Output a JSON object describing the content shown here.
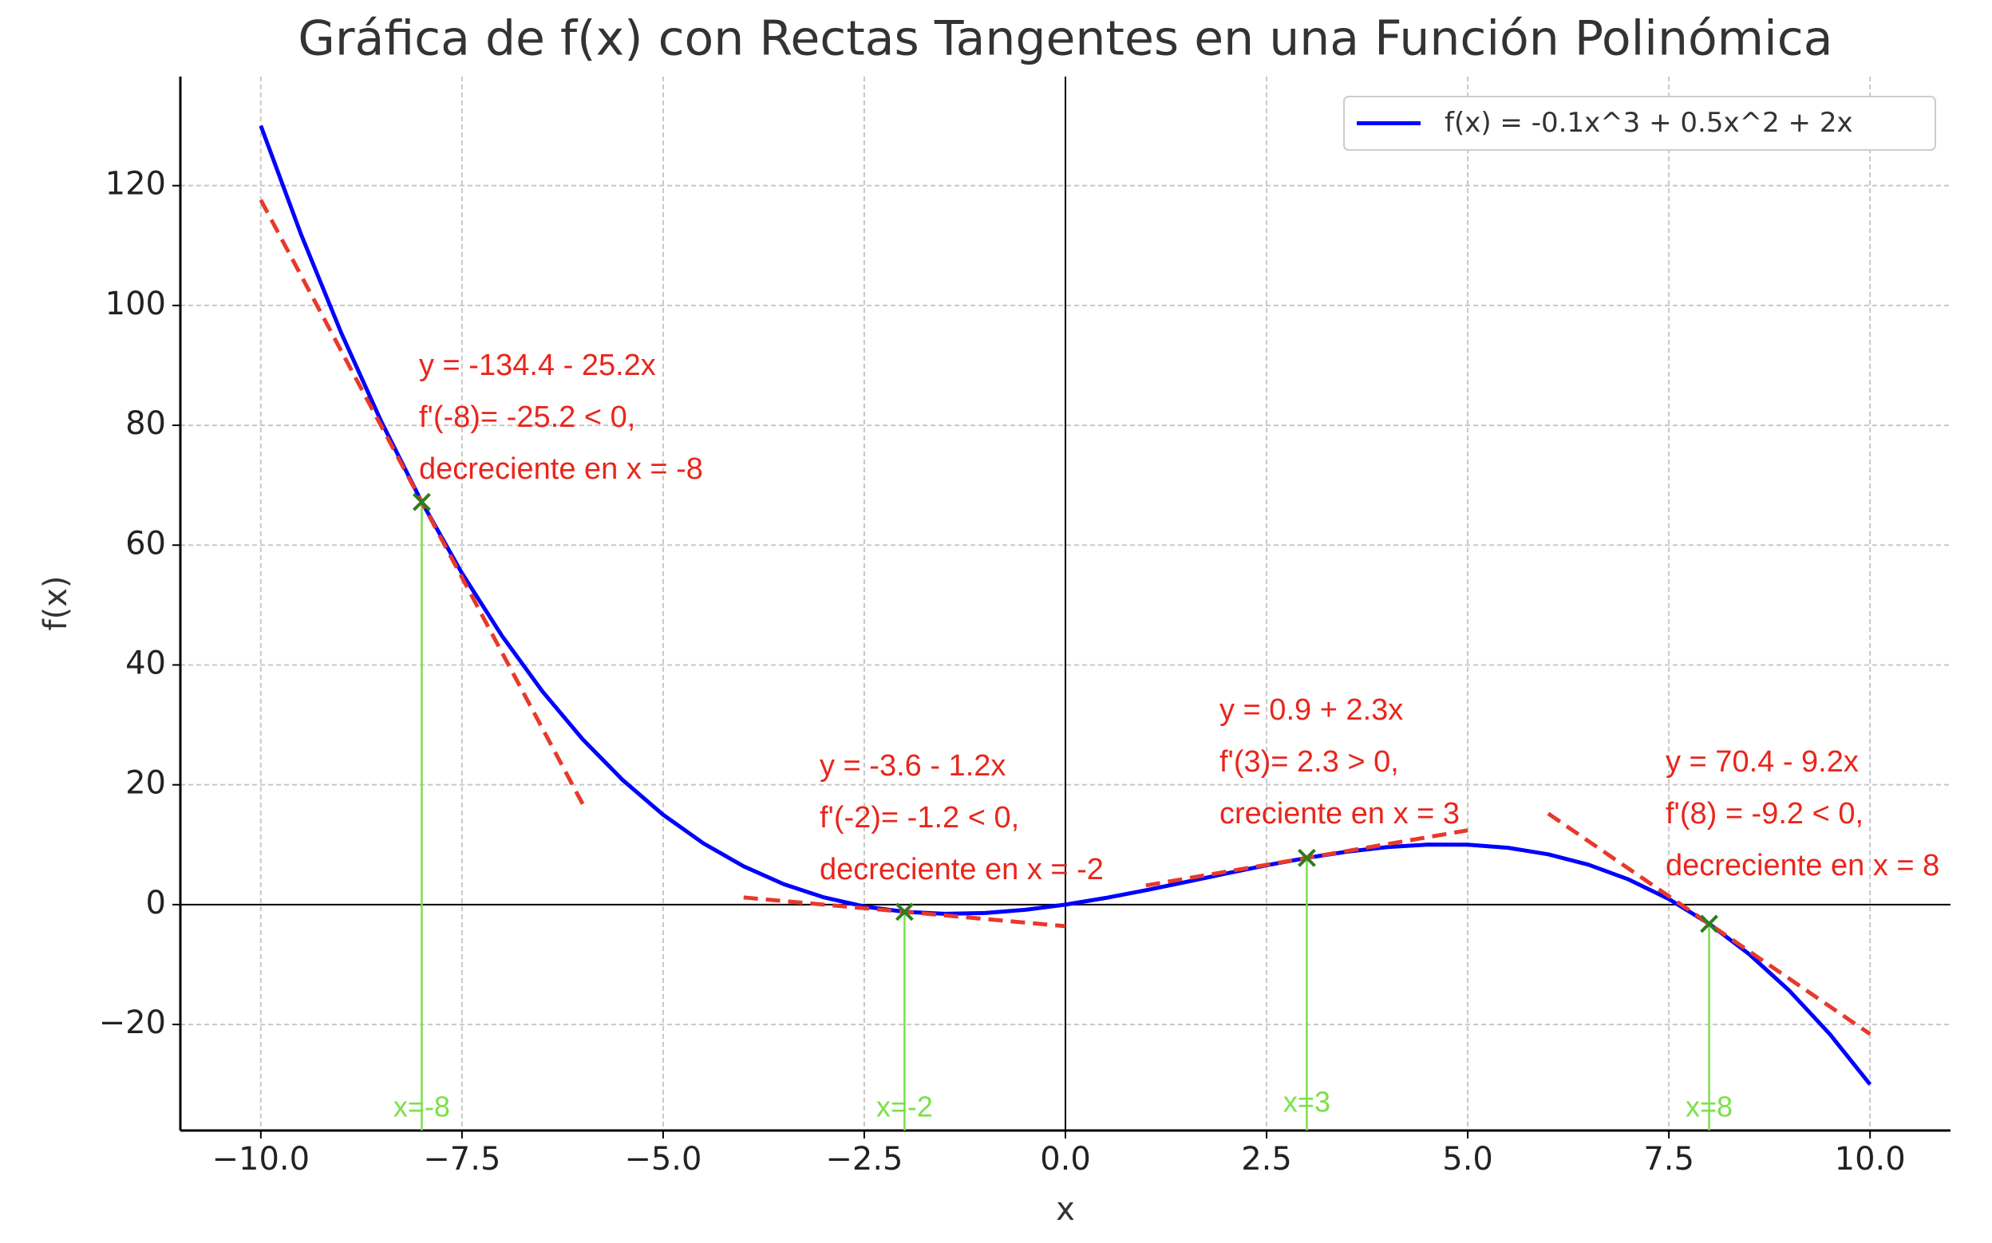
{
  "chart_data": {
    "type": "line",
    "title": "Gráfica de f(x) con Rectas Tangentes en una Función Polinómica",
    "xlabel": "x",
    "ylabel": "f(x)",
    "xlim": [
      -11,
      11
    ],
    "ylim": [
      -37.7,
      138.2
    ],
    "xticks": [
      {
        "value": -10,
        "label": "−10.0"
      },
      {
        "value": -7.5,
        "label": "−7.5"
      },
      {
        "value": -5,
        "label": "−5.0"
      },
      {
        "value": -2.5,
        "label": "−2.5"
      },
      {
        "value": 0,
        "label": "0.0"
      },
      2.5,
      {
        "value": 5,
        "label": "5.0"
      },
      7.5,
      {
        "value": 10,
        "label": "10.0"
      }
    ],
    "yticks": [
      {
        "value": -20,
        "label": "−20"
      },
      0,
      20,
      40,
      60,
      80,
      100,
      120
    ],
    "grid": true,
    "legend": "upper right",
    "series": [
      {
        "name": "f(x) = -0.1x^3 + 0.5x^2 + 2x",
        "color": "#0000ff",
        "x": [
          -10,
          -9.5,
          -9,
          -8.5,
          -8,
          -7.5,
          -7,
          -6.5,
          -6,
          -5.5,
          -5,
          -4.5,
          -4,
          -3.5,
          -3,
          -2.5,
          -2,
          -1.5,
          -1,
          -0.5,
          0,
          0.5,
          1,
          1.5,
          2,
          2.5,
          3,
          3.5,
          4,
          4.5,
          5,
          5.5,
          6,
          6.5,
          7,
          7.5,
          8,
          8.5,
          9,
          9.5,
          10
        ],
        "values": [
          130,
          111.8625,
          95.4,
          80.5375,
          67.2,
          55.3125,
          44.8,
          35.5875,
          27.6,
          20.7625,
          15,
          10.2375,
          6.4,
          3.4125,
          1.2,
          -0.3125,
          -1.2,
          -1.5375,
          -1.4,
          -0.8625,
          0,
          1.1125,
          2.4,
          3.7875,
          5.2,
          6.5625,
          7.8,
          8.8375,
          9.6,
          10.0125,
          10,
          9.4875,
          8.4,
          6.6625,
          4.2,
          0.9375,
          -3.2,
          -8.2875,
          -14.4,
          -21.6125,
          -30
        ]
      }
    ],
    "tangents": [
      {
        "color": "#e8392b",
        "x": [
          -10,
          -6
        ],
        "values": [
          117.6,
          16.8
        ]
      },
      {
        "color": "#e8392b",
        "x": [
          -4,
          0
        ],
        "values": [
          1.2,
          -3.6
        ]
      },
      {
        "color": "#e8392b",
        "x": [
          1,
          5
        ],
        "values": [
          3.2,
          12.4
        ]
      },
      {
        "color": "#e8392b",
        "x": [
          6,
          10
        ],
        "values": [
          15.2,
          -21.6
        ]
      }
    ],
    "points": {
      "color": "#2f7d1f",
      "line_color": "#7be04a",
      "x": [
        -8,
        -2,
        3,
        8
      ],
      "values": [
        67.2,
        -1.2,
        7.8,
        -3.2
      ],
      "labels": [
        "x=-8",
        "x=-2",
        "x=3",
        "x=8"
      ]
    },
    "annotations": [
      [
        "y = -134.4 - 25.2x",
        "f'(-8)= -25.2 < 0,",
        "decreciente en x = -8"
      ],
      [
        "y = -3.6 - 1.2x",
        "f'(-2)= -1.2 < 0,",
        "decreciente en x = -2"
      ],
      [
        "y = 0.9 + 2.3x",
        "f'(3)= 2.3 > 0,",
        "creciente en x = 3"
      ],
      [
        "y = 70.4 - 9.2x",
        "f'(8) = -9.2 < 0,",
        "decreciente en x = 8"
      ]
    ]
  }
}
